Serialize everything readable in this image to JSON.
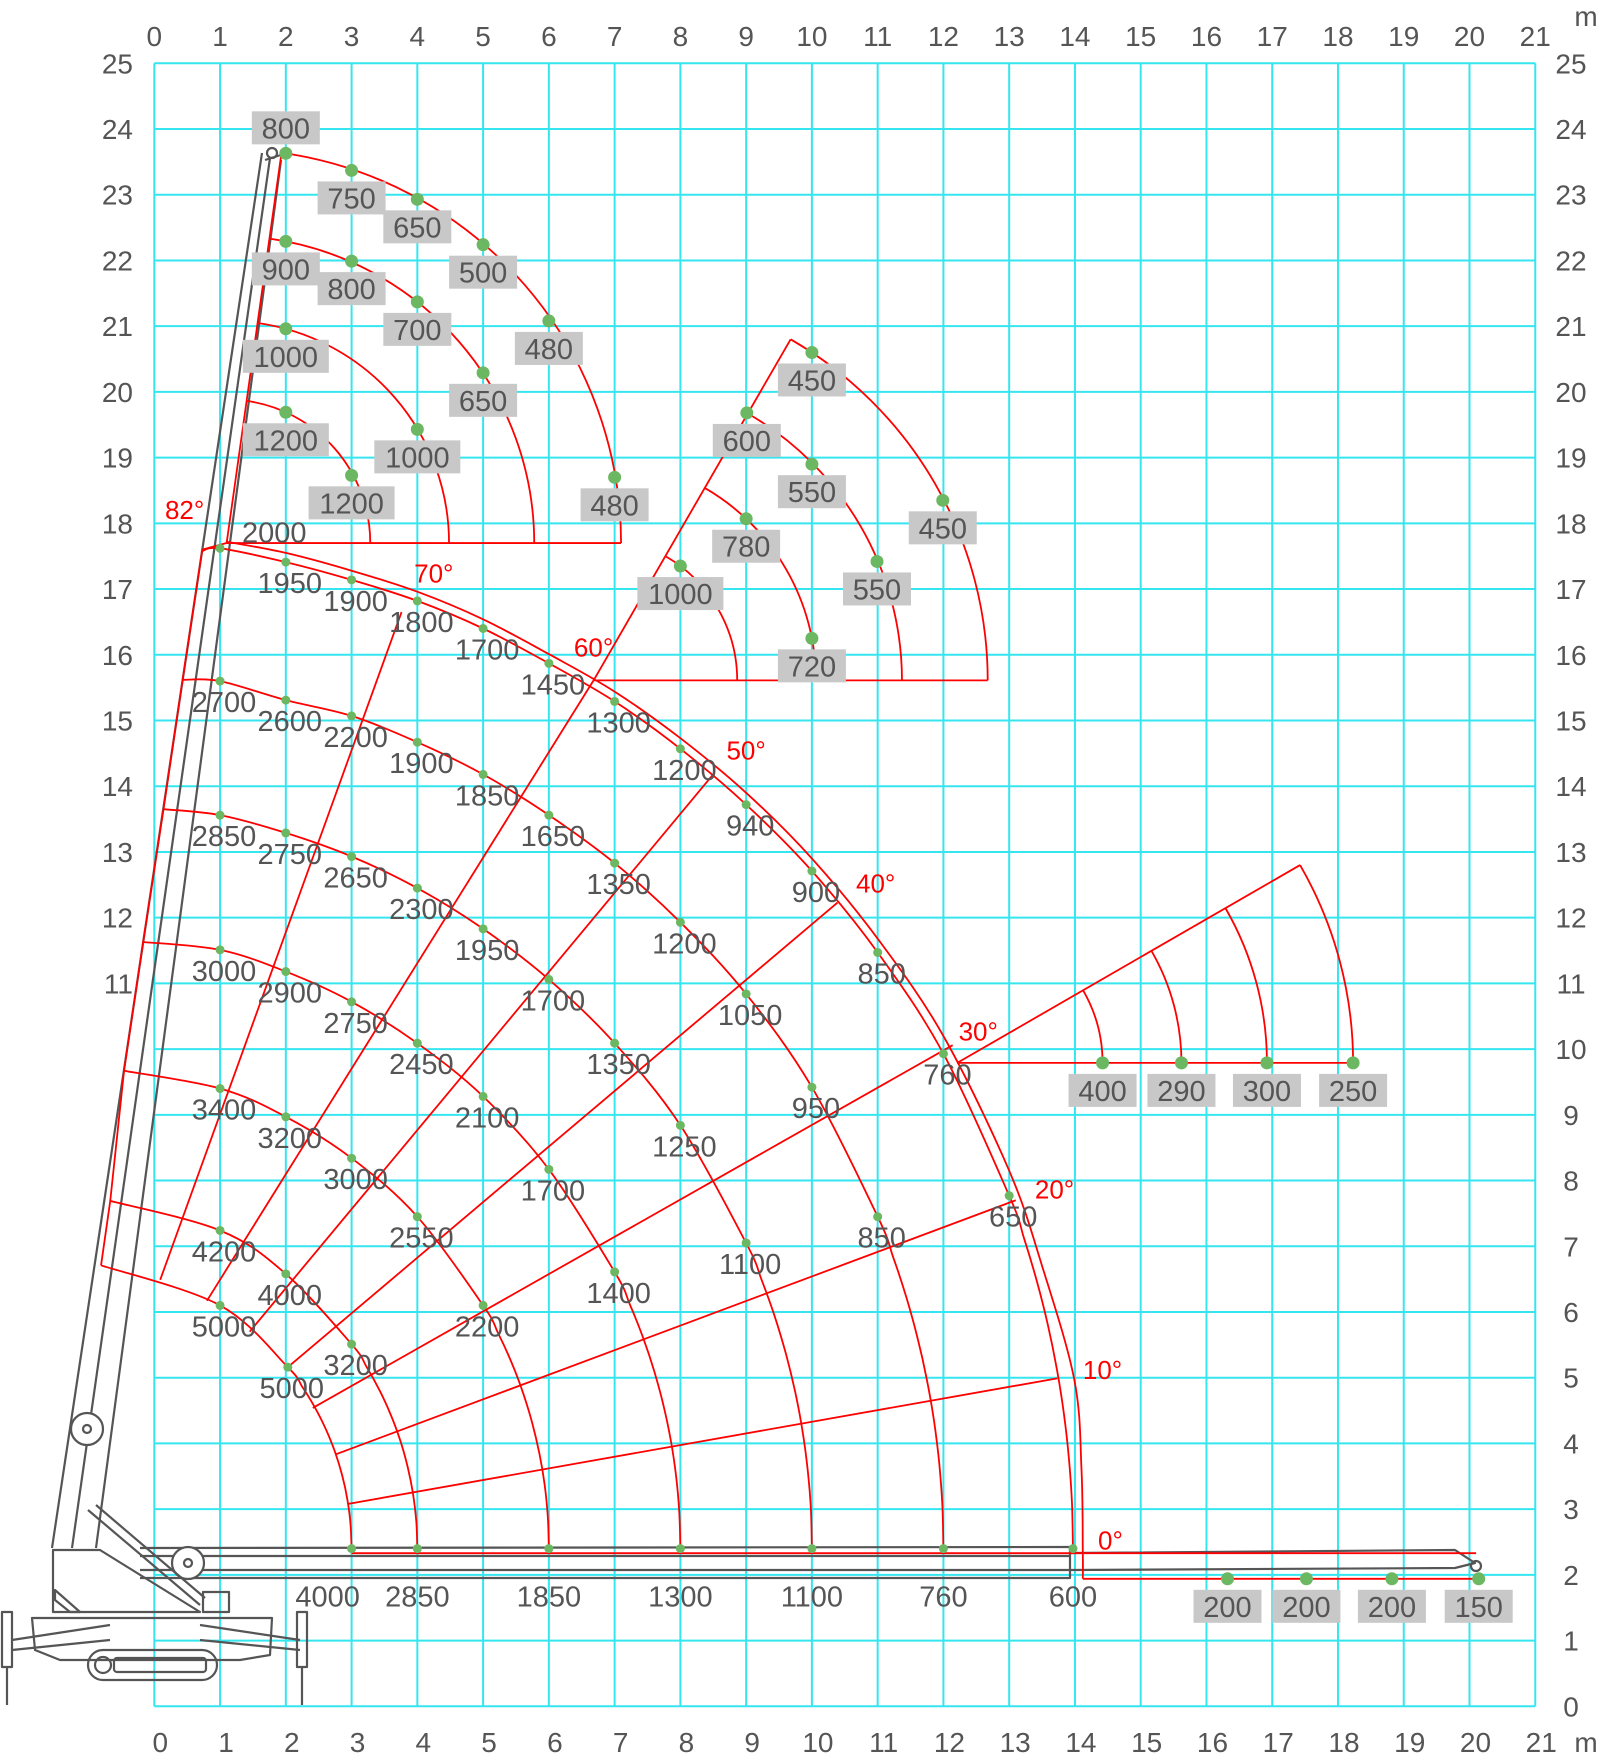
{
  "colors": {
    "grid": "#35e6f0",
    "curve": "#ff0000",
    "point": "#6cb862",
    "text": "#555555",
    "label_box": "#c8c8c8",
    "crane": "#555555"
  },
  "chart_data": {
    "type": "line",
    "title": "",
    "axes": {
      "x_unit": "m",
      "y_unit": "m",
      "xlim": [
        0,
        21
      ],
      "ylim": [
        0,
        25
      ],
      "grid": true,
      "x_ticks": [
        0,
        1,
        2,
        3,
        4,
        5,
        6,
        7,
        8,
        9,
        10,
        11,
        12,
        13,
        14,
        15,
        16,
        17,
        18,
        19,
        20,
        21
      ],
      "y_ticks_left": [
        25,
        24,
        23,
        22,
        21,
        20,
        19,
        18,
        17,
        16,
        15,
        14,
        13,
        12,
        11
      ],
      "y_ticks_right": [
        25,
        24,
        23,
        22,
        21,
        20,
        19,
        18,
        17,
        16,
        15,
        14,
        13,
        12,
        11,
        10,
        9,
        8,
        7,
        6,
        5,
        4,
        3,
        2,
        1,
        0
      ]
    },
    "main_boom": {
      "boom_outline": [
        [
          -0.81,
          6.71
        ],
        [
          -0.67,
          7.69
        ],
        [
          -0.46,
          9.67
        ],
        [
          -0.17,
          11.63
        ],
        [
          0.14,
          13.65
        ],
        [
          0.43,
          15.62
        ],
        [
          0.73,
          17.6
        ],
        [
          1.1,
          17.7
        ]
      ],
      "arcs": [
        {
          "start": [
            -0.81,
            6.71
          ],
          "points": [
            {
              "x": 1,
              "y": 6.1,
              "load": 5000
            },
            {
              "x": 2.03,
              "y": 5.16,
              "load": 5000
            }
          ],
          "end": {
            "x": 3,
            "y": 2.4,
            "load": 4000
          }
        },
        {
          "start": [
            -0.67,
            7.69
          ],
          "points": [
            {
              "x": 1,
              "y": 7.24,
              "load": 4200
            },
            {
              "x": 2,
              "y": 6.58,
              "load": 4000
            },
            {
              "x": 3,
              "y": 5.51,
              "load": 3200
            }
          ],
          "end": {
            "x": 4,
            "y": 2.4,
            "load": 2850
          }
        },
        {
          "start": [
            -0.46,
            9.67
          ],
          "points": [
            {
              "x": 1,
              "y": 9.4,
              "load": 3400
            },
            {
              "x": 2,
              "y": 8.97,
              "load": 3200
            },
            {
              "x": 3,
              "y": 8.34,
              "load": 3000
            },
            {
              "x": 4,
              "y": 7.45,
              "load": 2550
            },
            {
              "x": 5,
              "y": 6.1,
              "load": 2200
            }
          ],
          "end": {
            "x": 6,
            "y": 2.4,
            "load": 1850
          }
        },
        {
          "start": [
            -0.17,
            11.63
          ],
          "points": [
            {
              "x": 1,
              "y": 11.51,
              "load": 3000
            },
            {
              "x": 2,
              "y": 11.18,
              "load": 2900
            },
            {
              "x": 3,
              "y": 10.72,
              "load": 2750
            },
            {
              "x": 4,
              "y": 10.09,
              "load": 2450
            },
            {
              "x": 5,
              "y": 9.28,
              "load": 2100
            },
            {
              "x": 6,
              "y": 8.17,
              "load": 1700
            },
            {
              "x": 7,
              "y": 6.61,
              "load": 1400
            }
          ],
          "end": {
            "x": 8,
            "y": 2.4,
            "load": 1300
          }
        },
        {
          "start": [
            0.14,
            13.65
          ],
          "points": [
            {
              "x": 1,
              "y": 13.56,
              "load": 2850
            },
            {
              "x": 2,
              "y": 13.29,
              "load": 2750
            },
            {
              "x": 3,
              "y": 12.93,
              "load": 2650
            },
            {
              "x": 4,
              "y": 12.45,
              "load": 2300
            },
            {
              "x": 5,
              "y": 11.83,
              "load": 1950
            },
            {
              "x": 6,
              "y": 11.06,
              "load": 1700
            },
            {
              "x": 7,
              "y": 10.09,
              "load": 1350
            },
            {
              "x": 8,
              "y": 8.84,
              "load": 1250
            },
            {
              "x": 9,
              "y": 7.05,
              "load": 1100
            }
          ],
          "end": {
            "x": 10,
            "y": 2.4,
            "load": 1100
          }
        },
        {
          "start": [
            0.43,
            15.62
          ],
          "points": [
            {
              "x": 1,
              "y": 15.6,
              "load": 2700
            },
            {
              "x": 2,
              "y": 15.31,
              "load": 2600
            },
            {
              "x": 3,
              "y": 15.07,
              "load": 2200
            },
            {
              "x": 4,
              "y": 14.67,
              "load": 1900
            },
            {
              "x": 5,
              "y": 14.18,
              "load": 1850
            },
            {
              "x": 6,
              "y": 13.56,
              "load": 1650
            },
            {
              "x": 7,
              "y": 12.83,
              "load": 1350
            },
            {
              "x": 8,
              "y": 11.93,
              "load": 1200
            },
            {
              "x": 9,
              "y": 10.84,
              "load": 1050
            },
            {
              "x": 10,
              "y": 9.42,
              "load": 950
            },
            {
              "x": 11,
              "y": 7.45,
              "load": 850
            }
          ],
          "end": {
            "x": 12,
            "y": 2.4,
            "load": 760
          }
        },
        {
          "start": [
            0.71,
            17.57
          ],
          "points": [
            {
              "x": 1,
              "y": 17.62,
              "load": 2000
            },
            {
              "x": 2,
              "y": 17.41,
              "load": 1950
            },
            {
              "x": 3,
              "y": 17.14,
              "load": 1900
            },
            {
              "x": 4,
              "y": 16.82,
              "load": 1800
            },
            {
              "x": 5,
              "y": 16.4,
              "load": 1700
            },
            {
              "x": 6,
              "y": 15.87,
              "load": 1450
            },
            {
              "x": 7,
              "y": 15.29,
              "load": 1300
            },
            {
              "x": 8,
              "y": 14.57,
              "load": 1200
            },
            {
              "x": 9,
              "y": 13.72,
              "load": 940
            },
            {
              "x": 10,
              "y": 12.71,
              "load": 900
            },
            {
              "x": 11,
              "y": 11.47,
              "load": 850
            },
            {
              "x": 12,
              "y": 9.93,
              "load": 760
            },
            {
              "x": 13,
              "y": 7.77,
              "load": 650
            }
          ],
          "end": {
            "x": 13.97,
            "y": 2.4,
            "load": 600
          }
        }
      ],
      "envelope": [
        [
          1.1,
          17.72
        ],
        [
          2,
          17.55
        ],
        [
          3,
          17.28
        ],
        [
          4,
          16.96
        ],
        [
          5,
          16.54
        ],
        [
          6,
          16.01
        ],
        [
          7,
          15.44
        ],
        [
          8,
          14.73
        ],
        [
          9,
          13.9
        ],
        [
          10,
          12.9
        ],
        [
          11,
          11.68
        ],
        [
          12,
          10.2
        ],
        [
          13,
          8.15
        ],
        [
          13.5,
          6.7
        ],
        [
          13.99,
          4.97
        ],
        [
          14.1,
          3.6
        ],
        [
          14.12,
          2.33
        ],
        [
          14.12,
          1.94
        ]
      ],
      "angle_lines": [
        {
          "label": "70°",
          "from": [
            0.09,
            6.49
          ],
          "to": [
            3.76,
            16.65
          ]
        },
        {
          "label": "60°",
          "from": [
            0.8,
            6.17
          ],
          "to": [
            6.68,
            15.61
          ]
        },
        {
          "label": "50°",
          "from": [
            1.45,
            5.7
          ],
          "to": [
            8.49,
            14.17
          ]
        },
        {
          "label": "40°",
          "from": [
            2.03,
            5.16
          ],
          "to": [
            10.39,
            12.23
          ]
        },
        {
          "label": "30°",
          "from": [
            2.41,
            4.54
          ],
          "to": [
            12.14,
            10.06
          ]
        },
        {
          "label": "20°",
          "from": [
            2.75,
            3.83
          ],
          "to": [
            13.1,
            7.7
          ]
        },
        {
          "label": "10°",
          "from": [
            2.95,
            3.08
          ],
          "to": [
            13.73,
            4.99
          ]
        },
        {
          "label": "0°",
          "from": [
            3.0,
            2.33
          ],
          "to": [
            20.1,
            2.33
          ]
        }
      ]
    },
    "jibs": [
      {
        "angle": 82,
        "angle_label": "82°",
        "pivot": [
          1.1,
          17.7
        ],
        "arcs": [
          {
            "points": [
              {
                "x": 2,
                "y": 23.63,
                "load": 800
              },
              {
                "x": 3,
                "y": 23.37,
                "load": 750
              },
              {
                "x": 4,
                "y": 22.93,
                "load": 650
              },
              {
                "x": 5,
                "y": 22.24,
                "load": 500
              },
              {
                "x": 6,
                "y": 21.08,
                "load": 480
              },
              {
                "x": 7,
                "y": 18.7,
                "load": 480
              }
            ]
          },
          {
            "points": [
              {
                "x": 2,
                "y": 22.29,
                "load": 900
              },
              {
                "x": 3,
                "y": 21.99,
                "load": 800
              },
              {
                "x": 4,
                "y": 21.37,
                "load": 700
              },
              {
                "x": 5,
                "y": 20.29,
                "load": 650
              }
            ]
          },
          {
            "points": [
              {
                "x": 2,
                "y": 20.96,
                "load": 1000
              },
              {
                "x": 4,
                "y": 19.43,
                "load": 1000
              }
            ]
          },
          {
            "points": [
              {
                "x": 2,
                "y": 19.69,
                "load": 1200
              },
              {
                "x": 3,
                "y": 18.73,
                "load": 1200
              }
            ]
          }
        ]
      },
      {
        "angle": 60,
        "angle_label": "",
        "pivot": [
          6.68,
          15.61
        ],
        "arcs": [
          {
            "points": [
              {
                "x": 10,
                "y": 20.6,
                "load": 450
              },
              {
                "x": 11.99,
                "y": 18.35,
                "load": 450
              }
            ]
          },
          {
            "points": [
              {
                "x": 9.01,
                "y": 19.68,
                "load": 600
              },
              {
                "x": 10,
                "y": 18.9,
                "load": 550
              },
              {
                "x": 10.99,
                "y": 17.42,
                "load": 550
              }
            ]
          },
          {
            "points": [
              {
                "x": 9,
                "y": 18.07,
                "load": 780
              },
              {
                "x": 10,
                "y": 16.25,
                "load": 720
              }
            ]
          },
          {
            "points": [
              {
                "x": 8,
                "y": 17.35,
                "load": 1000
              }
            ]
          }
        ]
      },
      {
        "angle": 30,
        "angle_label": "",
        "pivot": [
          12.21,
          9.79
        ],
        "arcs": [
          {
            "points": [
              {
                "x": 18.23,
                "y": 9.79,
                "load": 250
              }
            ]
          },
          {
            "points": [
              {
                "x": 16.92,
                "y": 9.79,
                "load": 300
              }
            ]
          },
          {
            "points": [
              {
                "x": 15.62,
                "y": 9.79,
                "load": 290
              }
            ]
          },
          {
            "points": [
              {
                "x": 14.42,
                "y": 9.79,
                "load": 400
              }
            ]
          }
        ]
      }
    ],
    "horizontal_extension": {
      "points": [
        {
          "x": 16.32,
          "y": 1.94,
          "load": 200
        },
        {
          "x": 17.52,
          "y": 1.94,
          "load": 200
        },
        {
          "x": 18.82,
          "y": 1.94,
          "load": 200
        },
        {
          "x": 20.14,
          "y": 1.94,
          "load": 150
        }
      ]
    }
  }
}
